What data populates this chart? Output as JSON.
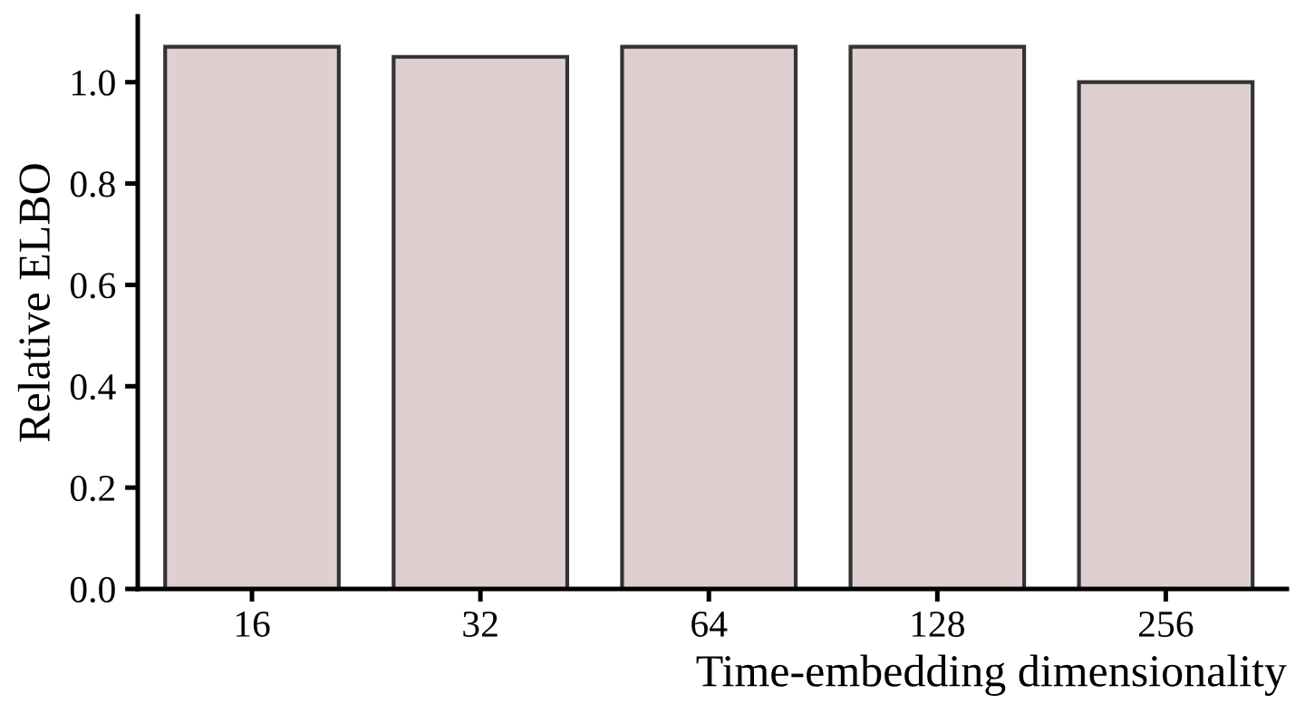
{
  "chart_data": {
    "type": "bar",
    "xlabel": "Time-embedding dimensionality",
    "ylabel": "Relative ELBO",
    "categories": [
      "16",
      "32",
      "64",
      "128",
      "256"
    ],
    "values": [
      1.07,
      1.05,
      1.07,
      1.07,
      1.0
    ],
    "color": "#e0cfd0",
    "ylim": [
      0,
      1.13
    ],
    "yticks": [
      {
        "value": 0,
        "label": "0.0"
      },
      {
        "value": 0.2,
        "label": "0.2"
      },
      {
        "value": 0.4,
        "label": "0.4"
      },
      {
        "value": 0.6,
        "label": "0.6"
      },
      {
        "value": 0.8,
        "label": "0.8"
      },
      {
        "value": 1.0,
        "label": "1.0"
      }
    ],
    "grid": false,
    "legend": false
  }
}
